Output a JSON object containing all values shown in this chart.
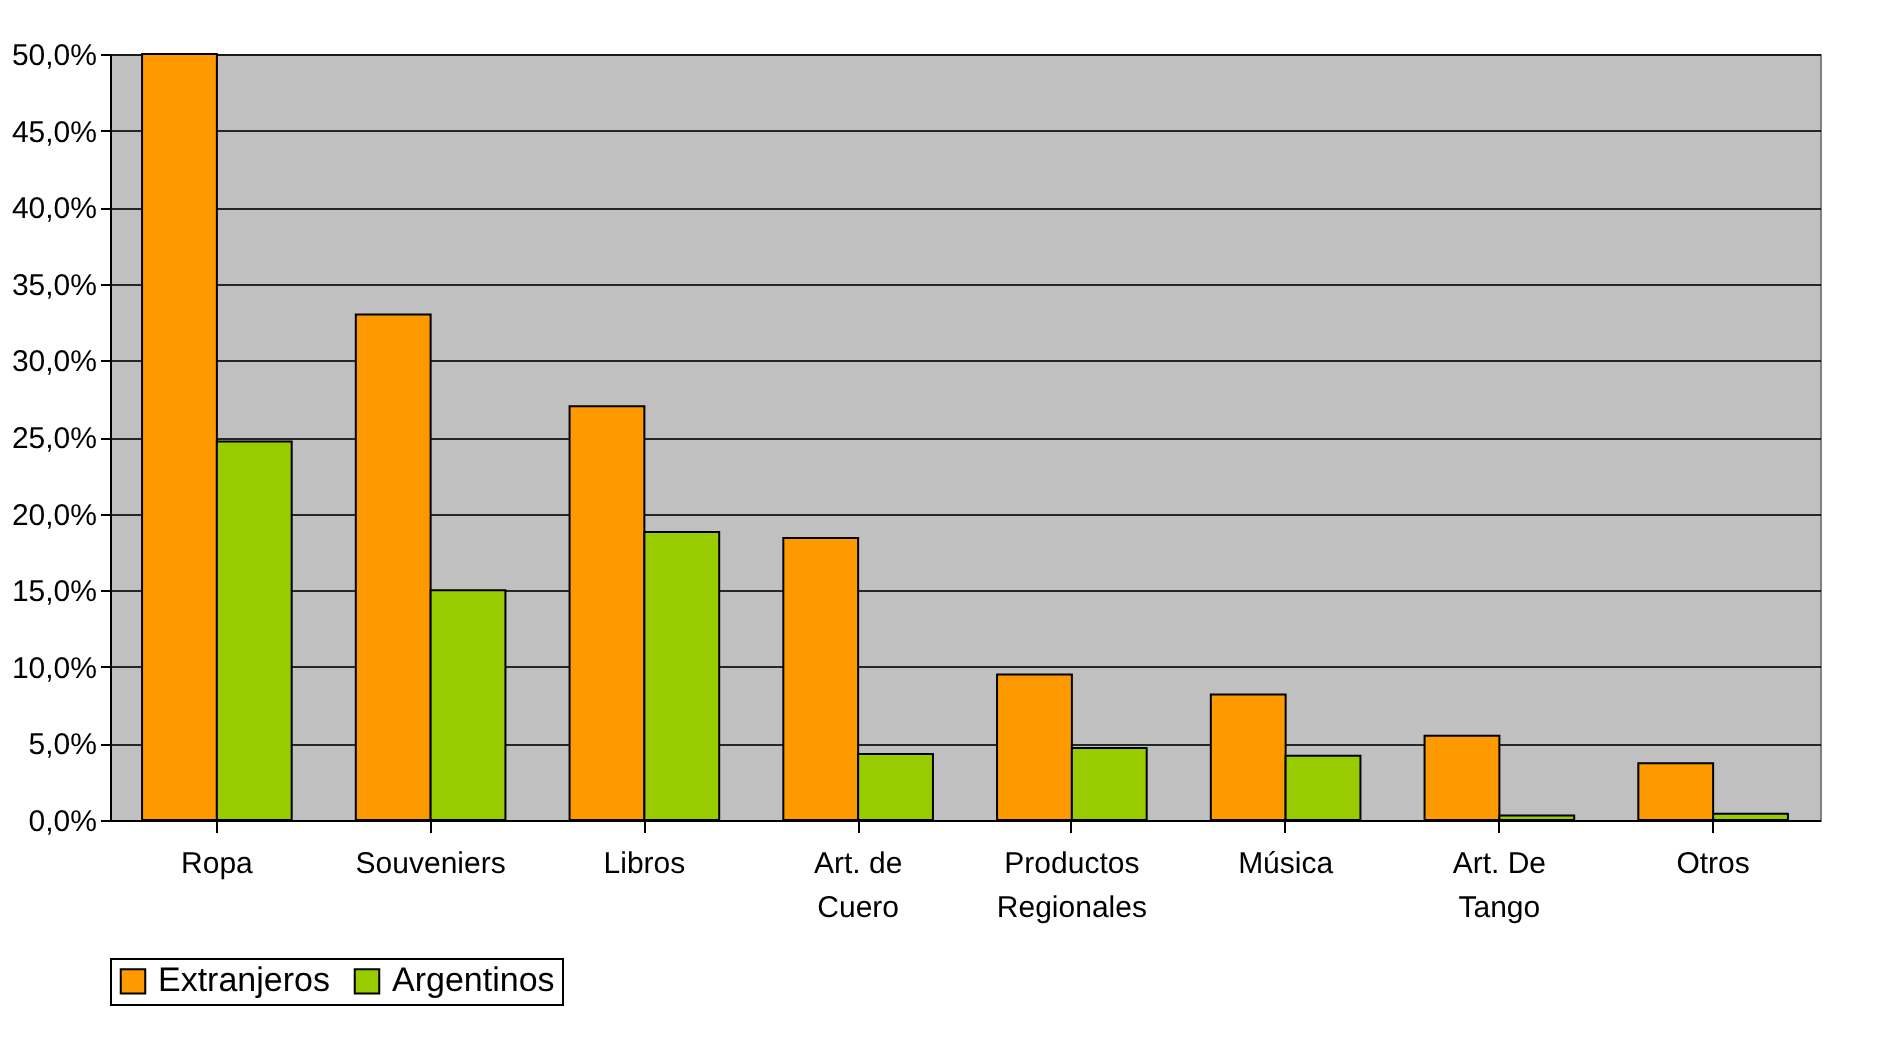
{
  "chart_data": {
    "type": "bar",
    "categories": [
      "Ropa",
      "Souveniers",
      "Libros",
      "Art. de Cuero",
      "Productos Regionales",
      "Música",
      "Art. De Tango",
      "Otros"
    ],
    "series": [
      {
        "name": "Extranjeros",
        "color": "#ff9900",
        "values": [
          50.0,
          33.0,
          27.0,
          18.4,
          9.5,
          8.2,
          5.5,
          3.7
        ]
      },
      {
        "name": "Argentinos",
        "color": "#99cc00",
        "values": [
          24.7,
          15.0,
          18.8,
          4.3,
          4.7,
          4.2,
          0.3,
          0.4
        ]
      }
    ],
    "ylim": [
      0,
      50
    ],
    "yticks": [
      {
        "value": 0,
        "label": "0,0%"
      },
      {
        "value": 5,
        "label": "5,0%"
      },
      {
        "value": 10,
        "label": "10,0%"
      },
      {
        "value": 15,
        "label": "15,0%"
      },
      {
        "value": 20,
        "label": "20,0%"
      },
      {
        "value": 25,
        "label": "25,0%"
      },
      {
        "value": 30,
        "label": "30,0%"
      },
      {
        "value": 35,
        "label": "35,0%"
      },
      {
        "value": 40,
        "label": "40,0%"
      },
      {
        "value": 45,
        "label": "45,0%"
      },
      {
        "value": 50,
        "label": "50,0%"
      }
    ],
    "grid": "y",
    "legend": "bottom"
  }
}
